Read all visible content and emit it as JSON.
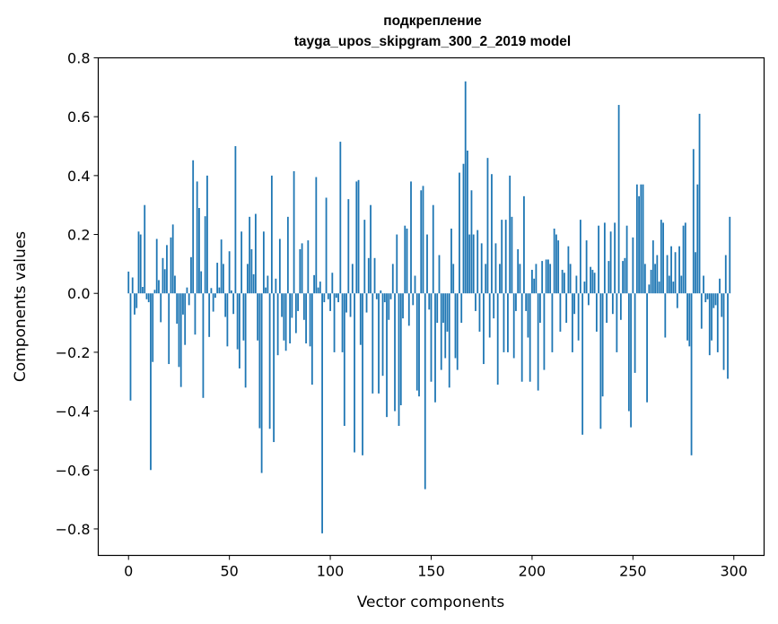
{
  "chart_data": {
    "type": "bar",
    "title": "подкрепление",
    "subtitle": "tayga_upos_skipgram_300_2_2019 model",
    "xlabel": "Vector components",
    "ylabel": "Components values",
    "xlim": [
      -15,
      315
    ],
    "ylim": [
      -0.89,
      0.8
    ],
    "xticks": [
      0,
      50,
      100,
      150,
      200,
      250,
      300
    ],
    "yticks": [
      -0.8,
      -0.6,
      -0.4,
      -0.2,
      0.0,
      0.2,
      0.4,
      0.6,
      0.8
    ],
    "ytick_labels": [
      "−0.8",
      "−0.6",
      "−0.4",
      "−0.2",
      "0.0",
      "0.2",
      "0.4",
      "0.6",
      "0.8"
    ],
    "grid": false,
    "bar_color": "#1f77b4",
    "series": [
      {
        "values": [
          0.074,
          -0.364,
          0.054,
          -0.072,
          -0.05,
          0.21,
          0.2,
          0.022,
          0.3,
          -0.02,
          -0.03,
          -0.6,
          -0.233,
          0.012,
          0.185,
          0.045,
          -0.098,
          0.12,
          0.082,
          0.164,
          -0.24,
          0.19,
          0.234,
          0.06,
          -0.103,
          -0.25,
          -0.318,
          -0.072,
          -0.175,
          0.02,
          -0.04,
          0.123,
          0.452,
          -0.14,
          0.38,
          0.29,
          0.075,
          -0.355,
          0.262,
          0.4,
          -0.148,
          0.018,
          -0.062,
          -0.015,
          0.104,
          0.02,
          0.183,
          0.1,
          -0.08,
          -0.18,
          0.143,
          0.01,
          -0.07,
          0.5,
          -0.19,
          -0.255,
          0.21,
          -0.16,
          -0.32,
          0.1,
          0.26,
          0.15,
          0.065,
          0.27,
          -0.16,
          -0.458,
          -0.61,
          0.21,
          0.02,
          0.06,
          -0.46,
          0.4,
          -0.505,
          0.05,
          -0.21,
          0.185,
          -0.08,
          -0.16,
          -0.195,
          0.26,
          -0.17,
          -0.083,
          0.415,
          -0.135,
          -0.06,
          0.15,
          0.17,
          -0.09,
          -0.17,
          0.18,
          -0.18,
          -0.31,
          0.062,
          0.395,
          0.02,
          0.04,
          -0.815,
          -0.03,
          0.325,
          -0.02,
          -0.06,
          0.07,
          -0.2,
          -0.015,
          -0.03,
          0.515,
          -0.2,
          -0.45,
          -0.065,
          0.32,
          -0.08,
          0.1,
          -0.54,
          0.38,
          0.385,
          -0.175,
          -0.55,
          0.25,
          -0.065,
          0.12,
          0.3,
          -0.34,
          0.12,
          -0.02,
          -0.34,
          0.01,
          -0.28,
          -0.03,
          -0.42,
          -0.09,
          -0.02,
          0.1,
          -0.4,
          0.2,
          -0.45,
          -0.38,
          -0.085,
          0.23,
          0.22,
          -0.11,
          0.38,
          -0.04,
          0.06,
          -0.33,
          -0.35,
          0.35,
          0.365,
          -0.665,
          0.2,
          -0.055,
          -0.3,
          0.3,
          -0.37,
          -0.1,
          0.13,
          -0.26,
          -0.1,
          -0.22,
          -0.13,
          -0.32,
          0.22,
          0.1,
          -0.22,
          -0.26,
          0.41,
          -0.1,
          0.44,
          0.72,
          0.485,
          0.2,
          0.35,
          0.2,
          -0.06,
          0.215,
          -0.13,
          0.17,
          -0.24,
          0.1,
          0.46,
          -0.15,
          0.405,
          -0.085,
          0.17,
          -0.31,
          0.1,
          0.25,
          -0.2,
          0.25,
          -0.2,
          0.4,
          0.26,
          -0.22,
          -0.06,
          0.15,
          0.1,
          -0.3,
          0.33,
          -0.06,
          -0.15,
          -0.3,
          0.08,
          0.05,
          0.1,
          -0.33,
          -0.1,
          0.11,
          -0.26,
          0.115,
          0.115,
          0.1,
          -0.2,
          0.22,
          0.2,
          0.18,
          -0.13,
          0.08,
          0.07,
          -0.1,
          0.16,
          0.1,
          -0.2,
          -0.07,
          0.06,
          -0.16,
          0.25,
          -0.48,
          0.04,
          0.18,
          -0.04,
          0.09,
          0.08,
          0.07,
          -0.13,
          0.23,
          -0.46,
          -0.35,
          0.24,
          -0.1,
          0.11,
          0.21,
          -0.07,
          0.24,
          -0.2,
          0.64,
          -0.09,
          0.11,
          0.12,
          0.23,
          -0.4,
          -0.455,
          0.19,
          -0.27,
          0.37,
          0.33,
          0.37,
          0.37,
          0.1,
          -0.37,
          0.03,
          0.08,
          0.18,
          0.1,
          0.13,
          0.04,
          0.25,
          0.24,
          -0.15,
          0.13,
          0.06,
          0.16,
          0.04,
          0.14,
          -0.05,
          0.16,
          0.06,
          0.23,
          0.24,
          -0.16,
          -0.18,
          -0.55,
          0.49,
          0.14,
          0.37,
          0.61,
          -0.12,
          0.06,
          -0.03,
          -0.02,
          -0.21,
          -0.16,
          -0.05,
          -0.04,
          -0.2,
          0.05,
          -0.08,
          -0.26,
          0.13,
          -0.29,
          0.26
        ]
      }
    ]
  }
}
